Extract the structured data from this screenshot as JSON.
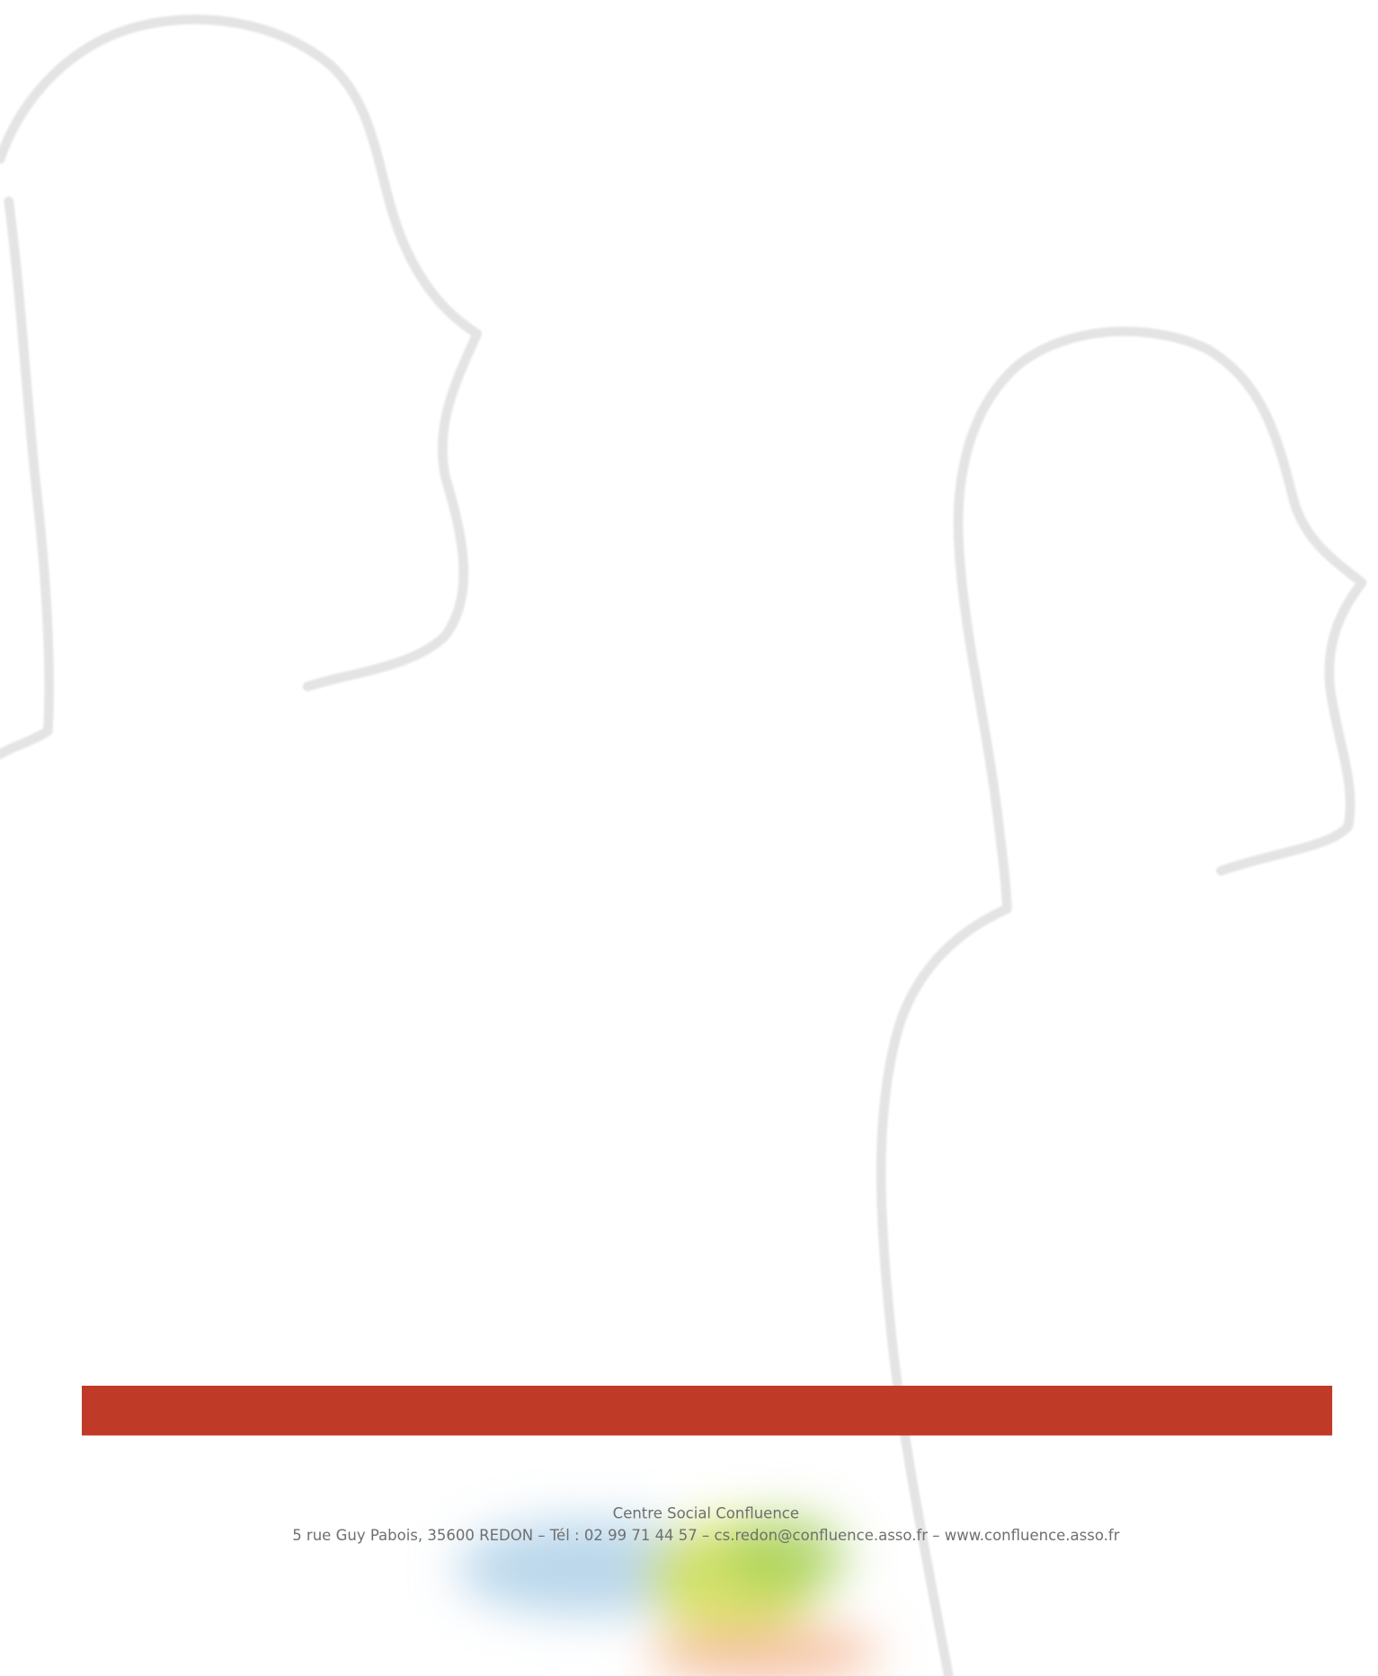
{
  "footer": {
    "organization": "Centre Social Confluence",
    "address": "5 rue Guy Pabois, 35600 REDON – Tél : 02 99 71 44 57 – cs.redon@confluence.asso.fr – www.confluence.asso.fr"
  }
}
